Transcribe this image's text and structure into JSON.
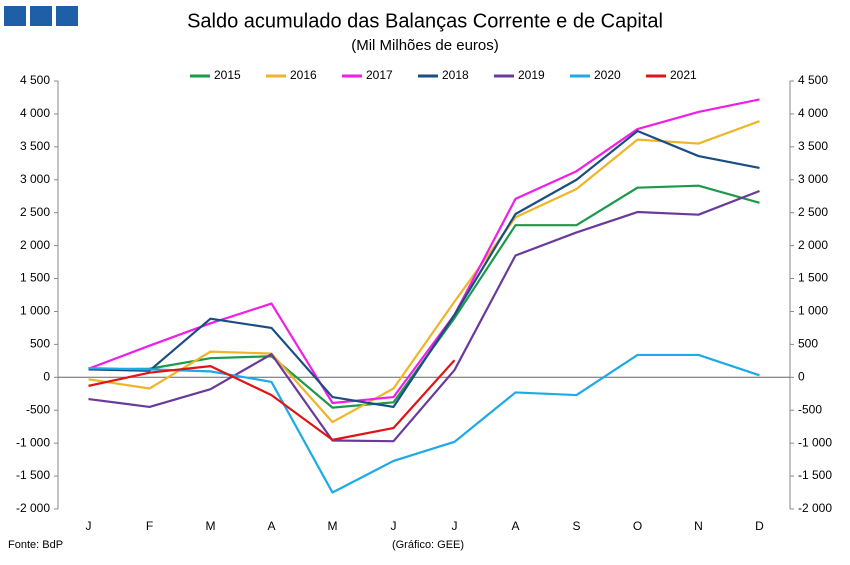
{
  "chart_data": {
    "type": "line",
    "title": "Saldo acumulado das Balanças Corrente e de Capital",
    "subtitle": "(Mil Milhões de euros)",
    "source": "Fonte: BdP",
    "credit": "(Gráfico: GEE)",
    "categories": [
      "J",
      "F",
      "M",
      "A",
      "M",
      "J",
      "J",
      "A",
      "S",
      "O",
      "N",
      "D"
    ],
    "series": [
      {
        "name": "2015",
        "color": "#1a9a4a",
        "values": [
          120,
          130,
          290,
          320,
          -460,
          -380,
          900,
          2310,
          2310,
          2880,
          2910,
          2650
        ]
      },
      {
        "name": "2016",
        "color": "#f0b428",
        "values": [
          -30,
          -170,
          390,
          360,
          -680,
          -170,
          1150,
          2430,
          2860,
          3610,
          3550,
          3890
        ]
      },
      {
        "name": "2017",
        "color": "#f01ee6",
        "values": [
          130,
          480,
          820,
          1120,
          -390,
          -300,
          950,
          2710,
          3130,
          3770,
          4030,
          4220
        ]
      },
      {
        "name": "2018",
        "color": "#1a4e82",
        "values": [
          120,
          100,
          890,
          750,
          -300,
          -450,
          950,
          2480,
          3000,
          3740,
          3360,
          3180
        ]
      },
      {
        "name": "2019",
        "color": "#6a3a9a",
        "values": [
          -330,
          -450,
          -180,
          350,
          -960,
          -970,
          110,
          1850,
          2200,
          2510,
          2470,
          2830
        ]
      },
      {
        "name": "2020",
        "color": "#1eaae6",
        "values": [
          140,
          120,
          90,
          -70,
          -1750,
          -1270,
          -980,
          -230,
          -270,
          340,
          340,
          30
        ]
      },
      {
        "name": "2021",
        "color": "#e01414",
        "values": [
          -130,
          70,
          170,
          -270,
          -950,
          -770,
          260,
          null,
          null,
          null,
          null,
          null
        ]
      }
    ],
    "ylim": [
      -2000,
      4500
    ],
    "yticks": [
      {
        "value": -2000,
        "label": "-2 000"
      },
      {
        "value": -1500,
        "label": "-1 500"
      },
      {
        "value": -1000,
        "label": "-1 000"
      },
      -500,
      0,
      500,
      {
        "value": 1000,
        "label": "1 000"
      },
      {
        "value": 1500,
        "label": "1 500"
      },
      {
        "value": 2000,
        "label": "2 000"
      },
      {
        "value": 2500,
        "label": "2 500"
      },
      {
        "value": 3000,
        "label": "3 000"
      },
      {
        "value": 3500,
        "label": "3 500"
      },
      {
        "value": 4000,
        "label": "4 000"
      },
      {
        "value": 4500,
        "label": "4 500"
      }
    ],
    "y2lim": [
      -2000,
      4500
    ],
    "y2ticks": [
      {
        "value": -2000,
        "label": "-2 000"
      },
      {
        "value": -1500,
        "label": "-1 500"
      },
      {
        "value": -1000,
        "label": "-1 000"
      },
      -500,
      0,
      500,
      {
        "value": 1000,
        "label": "1 000"
      },
      {
        "value": 1500,
        "label": "1 500"
      },
      {
        "value": 2000,
        "label": "2 000"
      },
      {
        "value": 2500,
        "label": "2 500"
      },
      {
        "value": 3000,
        "label": "3 000"
      },
      {
        "value": 3500,
        "label": "3 500"
      },
      {
        "value": 4000,
        "label": "4 000"
      },
      {
        "value": 4500,
        "label": "4 500"
      }
    ],
    "legend": "top"
  }
}
